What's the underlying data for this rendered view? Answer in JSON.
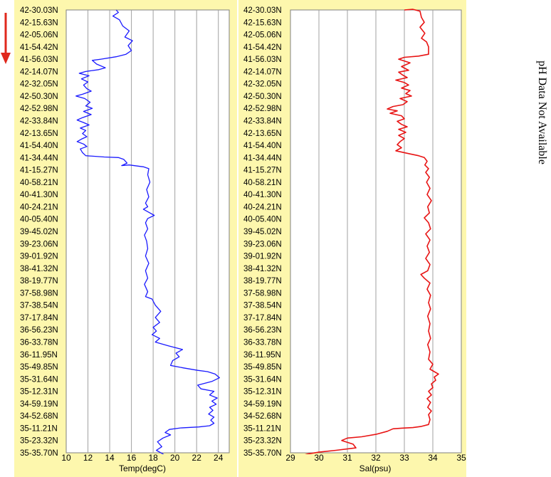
{
  "note": "pH Data Not Available",
  "colors": {
    "panel_background": "#fdf7ad",
    "plot_background": "#ffffff",
    "grid": "#a0a0a0",
    "arrow": "#e0281c"
  },
  "direction_arrow": {
    "icon": "down-arrow-icon",
    "meaning": "direction of travel"
  },
  "position_labels": [
    "42-30.03N",
    "42-15.63N",
    "42-05.06N",
    "41-54.42N",
    "41-56.03N",
    "42-14.07N",
    "42-32.05N",
    "42-50.30N",
    "42-52.98N",
    "42-33.84N",
    "42-13.65N",
    "41-54.40N",
    "41-34.44N",
    "41-15.27N",
    "40-58.21N",
    "40-41.30N",
    "40-24.21N",
    "40-05.40N",
    "39-45.02N",
    "39-23.06N",
    "39-01.92N",
    "38-41.32N",
    "38-19.77N",
    "37-58.98N",
    "37-38.54N",
    "37-17.84N",
    "36-56.23N",
    "36-33.78N",
    "36-11.95N",
    "35-49.85N",
    "35-31.64N",
    "35-12.31N",
    "34-59.19N",
    "34-52.68N",
    "35-11.21N",
    "35-23.32N",
    "35-35.70N"
  ],
  "chart_data": [
    {
      "type": "line",
      "orientation": "vertical",
      "xlabel": "Temp(degC)",
      "xlim": [
        10,
        25
      ],
      "xticks": [
        "10",
        "12",
        "14",
        "16",
        "18",
        "20",
        "22",
        "24"
      ],
      "grid": true,
      "series": [
        {
          "color": "#1a1aff",
          "points": [
            [
              14.6,
              0.0
            ],
            [
              14.8,
              0.2
            ],
            [
              14.3,
              0.5
            ],
            [
              14.9,
              0.8
            ],
            [
              15.2,
              1.3
            ],
            [
              15.8,
              1.7
            ],
            [
              15.4,
              2.2
            ],
            [
              16.1,
              2.5
            ],
            [
              15.7,
              2.9
            ],
            [
              16.0,
              3.3
            ],
            [
              15.5,
              3.6
            ],
            [
              14.6,
              3.8
            ],
            [
              13.2,
              4.0
            ],
            [
              12.4,
              4.1
            ],
            [
              12.8,
              4.4
            ],
            [
              13.6,
              4.7
            ],
            [
              13.0,
              4.85
            ],
            [
              11.8,
              5.0
            ],
            [
              11.2,
              5.15
            ],
            [
              12.1,
              5.35
            ],
            [
              11.4,
              5.6
            ],
            [
              12.0,
              5.85
            ],
            [
              11.6,
              6.1
            ],
            [
              11.9,
              6.4
            ],
            [
              12.3,
              6.6
            ],
            [
              11.5,
              6.85
            ],
            [
              10.9,
              7.0
            ],
            [
              11.7,
              7.2
            ],
            [
              12.2,
              7.5
            ],
            [
              11.8,
              7.8
            ],
            [
              12.4,
              8.0
            ],
            [
              11.6,
              8.25
            ],
            [
              12.3,
              8.5
            ],
            [
              11.5,
              8.75
            ],
            [
              11.0,
              8.95
            ],
            [
              11.6,
              9.15
            ],
            [
              12.1,
              9.35
            ],
            [
              11.3,
              9.6
            ],
            [
              11.8,
              9.8
            ],
            [
              11.5,
              10.05
            ],
            [
              11.9,
              10.3
            ],
            [
              11.4,
              10.5
            ],
            [
              11.0,
              10.7
            ],
            [
              11.6,
              10.9
            ],
            [
              11.9,
              11.1
            ],
            [
              11.3,
              11.3
            ],
            [
              11.5,
              11.6
            ],
            [
              11.8,
              11.85
            ],
            [
              13.5,
              11.95
            ],
            [
              14.8,
              12.0
            ],
            [
              15.3,
              12.15
            ],
            [
              15.6,
              12.45
            ],
            [
              15.1,
              12.65
            ],
            [
              15.8,
              12.6
            ],
            [
              17.1,
              12.75
            ],
            [
              17.6,
              12.9
            ],
            [
              17.5,
              13.4
            ],
            [
              17.7,
              14.0
            ],
            [
              17.4,
              14.6
            ],
            [
              17.6,
              15.2
            ],
            [
              17.3,
              15.7
            ],
            [
              17.5,
              16.0
            ],
            [
              17.1,
              16.2
            ],
            [
              17.6,
              16.45
            ],
            [
              18.1,
              16.7
            ],
            [
              17.5,
              16.95
            ],
            [
              17.3,
              17.3
            ],
            [
              17.5,
              17.8
            ],
            [
              17.2,
              18.3
            ],
            [
              17.4,
              18.8
            ],
            [
              17.5,
              19.4
            ],
            [
              17.3,
              20.0
            ],
            [
              17.6,
              20.6
            ],
            [
              17.3,
              21.2
            ],
            [
              17.5,
              21.8
            ],
            [
              17.2,
              22.3
            ],
            [
              17.5,
              22.9
            ],
            [
              17.3,
              23.3
            ],
            [
              17.9,
              23.5
            ],
            [
              18.2,
              24.0
            ],
            [
              18.7,
              24.5
            ],
            [
              18.2,
              25.0
            ],
            [
              18.6,
              25.4
            ],
            [
              18.0,
              25.8
            ],
            [
              18.3,
              26.1
            ],
            [
              17.9,
              26.4
            ],
            [
              18.6,
              26.7
            ],
            [
              18.2,
              27.0
            ],
            [
              19.4,
              27.3
            ],
            [
              20.7,
              27.6
            ],
            [
              20.1,
              27.9
            ],
            [
              20.4,
              28.2
            ],
            [
              19.8,
              28.5
            ],
            [
              19.6,
              28.9
            ],
            [
              20.8,
              29.1
            ],
            [
              22.1,
              29.3
            ],
            [
              23.0,
              29.4
            ],
            [
              23.7,
              29.6
            ],
            [
              24.1,
              29.9
            ],
            [
              23.4,
              30.2
            ],
            [
              22.1,
              30.5
            ],
            [
              22.4,
              30.8
            ],
            [
              23.6,
              31.0
            ],
            [
              23.2,
              31.3
            ],
            [
              23.9,
              31.55
            ],
            [
              23.4,
              31.8
            ],
            [
              23.8,
              32.05
            ],
            [
              23.2,
              32.3
            ],
            [
              23.5,
              32.55
            ],
            [
              23.1,
              32.85
            ],
            [
              23.6,
              33.1
            ],
            [
              23.3,
              33.35
            ],
            [
              23.6,
              33.6
            ],
            [
              23.2,
              33.8
            ],
            [
              22.2,
              33.9
            ],
            [
              20.5,
              33.98
            ],
            [
              19.5,
              34.1
            ],
            [
              19.1,
              34.35
            ],
            [
              19.6,
              34.55
            ],
            [
              18.9,
              34.8
            ],
            [
              18.4,
              35.1
            ],
            [
              18.8,
              35.5
            ],
            [
              18.3,
              35.8
            ],
            [
              18.9,
              36.1
            ],
            [
              19.3,
              36.35
            ],
            [
              19.4,
              36.5
            ]
          ]
        }
      ]
    },
    {
      "type": "line",
      "orientation": "vertical",
      "xlabel": "Sal(psu)",
      "xlim": [
        29,
        35
      ],
      "xticks": [
        "29",
        "30",
        "31",
        "32",
        "33",
        "34",
        "35"
      ],
      "grid": true,
      "series": [
        {
          "color": "#e81414",
          "points": [
            [
              33.0,
              0.0
            ],
            [
              33.3,
              -0.05
            ],
            [
              33.55,
              0.1
            ],
            [
              33.6,
              0.6
            ],
            [
              33.7,
              1.0
            ],
            [
              33.55,
              1.4
            ],
            [
              33.72,
              1.9
            ],
            [
              33.6,
              2.3
            ],
            [
              33.78,
              2.6
            ],
            [
              33.85,
              3.0
            ],
            [
              33.85,
              3.6
            ],
            [
              33.5,
              3.75
            ],
            [
              33.0,
              3.85
            ],
            [
              32.8,
              4.0
            ],
            [
              33.2,
              4.3
            ],
            [
              32.9,
              4.6
            ],
            [
              33.15,
              4.9
            ],
            [
              32.8,
              5.05
            ],
            [
              32.95,
              5.3
            ],
            [
              33.1,
              5.5
            ],
            [
              32.7,
              5.7
            ],
            [
              33.0,
              5.9
            ],
            [
              33.15,
              6.1
            ],
            [
              32.9,
              6.35
            ],
            [
              33.2,
              6.55
            ],
            [
              33.05,
              6.8
            ],
            [
              33.25,
              7.0
            ],
            [
              32.85,
              7.2
            ],
            [
              33.1,
              7.45
            ],
            [
              32.95,
              7.7
            ],
            [
              32.6,
              7.85
            ],
            [
              32.4,
              8.05
            ],
            [
              32.75,
              8.2
            ],
            [
              32.5,
              8.4
            ],
            [
              32.9,
              8.6
            ],
            [
              33.0,
              8.85
            ],
            [
              32.75,
              9.05
            ],
            [
              32.9,
              9.3
            ],
            [
              33.1,
              9.5
            ],
            [
              32.8,
              9.7
            ],
            [
              33.05,
              9.95
            ],
            [
              32.8,
              10.2
            ],
            [
              33.0,
              10.45
            ],
            [
              32.85,
              10.7
            ],
            [
              32.75,
              10.95
            ],
            [
              32.9,
              11.2
            ],
            [
              32.7,
              11.45
            ],
            [
              33.2,
              11.7
            ],
            [
              33.5,
              11.85
            ],
            [
              33.7,
              12.0
            ],
            [
              33.8,
              12.3
            ],
            [
              33.72,
              12.6
            ],
            [
              33.85,
              12.9
            ],
            [
              33.75,
              13.2
            ],
            [
              33.88,
              13.6
            ],
            [
              33.78,
              14.0
            ],
            [
              33.9,
              14.5
            ],
            [
              33.8,
              15.0
            ],
            [
              33.95,
              15.5
            ],
            [
              33.82,
              16.0
            ],
            [
              33.88,
              16.5
            ],
            [
              33.7,
              16.9
            ],
            [
              33.85,
              17.3
            ],
            [
              33.92,
              17.8
            ],
            [
              33.75,
              18.2
            ],
            [
              33.9,
              18.7
            ],
            [
              33.8,
              19.2
            ],
            [
              33.88,
              19.7
            ],
            [
              33.75,
              20.2
            ],
            [
              33.9,
              20.7
            ],
            [
              33.82,
              21.2
            ],
            [
              33.58,
              21.5
            ],
            [
              33.7,
              21.8
            ],
            [
              33.9,
              22.2
            ],
            [
              33.8,
              22.7
            ],
            [
              33.92,
              23.2
            ],
            [
              33.85,
              23.8
            ],
            [
              33.92,
              24.3
            ],
            [
              33.82,
              24.9
            ],
            [
              33.9,
              25.5
            ],
            [
              33.85,
              26.1
            ],
            [
              33.92,
              26.7
            ],
            [
              33.82,
              27.2
            ],
            [
              33.9,
              27.8
            ],
            [
              33.85,
              28.4
            ],
            [
              34.0,
              28.8
            ],
            [
              33.9,
              29.2
            ],
            [
              34.05,
              29.4
            ],
            [
              34.2,
              29.6
            ],
            [
              34.05,
              29.85
            ],
            [
              34.1,
              30.1
            ],
            [
              33.95,
              30.4
            ],
            [
              34.0,
              30.7
            ],
            [
              33.85,
              31.0
            ],
            [
              33.95,
              31.3
            ],
            [
              33.8,
              31.6
            ],
            [
              33.92,
              31.9
            ],
            [
              33.82,
              32.3
            ],
            [
              33.95,
              32.6
            ],
            [
              33.85,
              32.9
            ],
            [
              33.9,
              33.3
            ],
            [
              33.85,
              33.7
            ],
            [
              33.6,
              33.85
            ],
            [
              33.3,
              33.95
            ],
            [
              32.9,
              34.0
            ],
            [
              32.6,
              34.05
            ],
            [
              32.4,
              34.25
            ],
            [
              32.0,
              34.5
            ],
            [
              31.5,
              34.7
            ],
            [
              31.0,
              34.8
            ],
            [
              30.8,
              35.0
            ],
            [
              31.2,
              35.3
            ],
            [
              31.3,
              35.6
            ],
            [
              30.6,
              35.8
            ],
            [
              30.0,
              35.95
            ],
            [
              29.6,
              36.1
            ],
            [
              29.3,
              36.3
            ],
            [
              29.2,
              36.5
            ]
          ]
        }
      ]
    }
  ]
}
